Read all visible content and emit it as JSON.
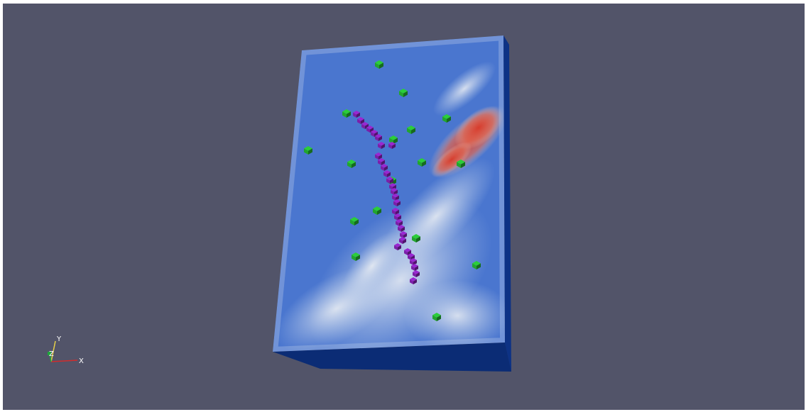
{
  "viewport": {
    "background": "#525469"
  },
  "terrain": {
    "top_color": "#4a76cf",
    "side_color": "#0c2e7c",
    "bottom_color": "#0b2c75",
    "low_color": "#4d79d1",
    "mid_color": "#dfe6ef",
    "high_color": "#d83a2a"
  },
  "markers": {
    "green_color": "#22a52e",
    "purple_color": "#7b1fa8",
    "green_count": 17,
    "purple_count": 30
  },
  "axes": {
    "x_label": "X",
    "y_label": "Y",
    "z_label": "Z",
    "x_color": "#d12c2c",
    "y_color": "#e7d14a",
    "z_color": "#1ea83a"
  }
}
